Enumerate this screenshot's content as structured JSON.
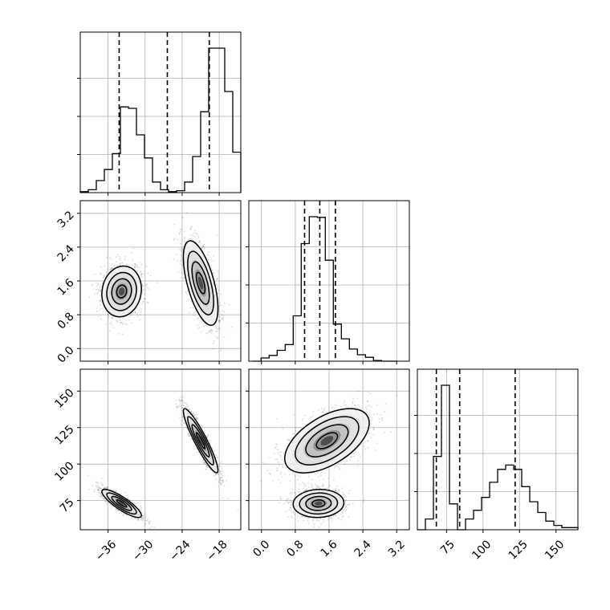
{
  "chart_data": {
    "type": "corner",
    "title": "",
    "xlabel": "",
    "ylabel": "",
    "grid": true,
    "colors": {
      "hist": "#000000",
      "contour": "#000000",
      "grid": "#b0b0b0",
      "points": "#000000"
    },
    "parameters": [
      {
        "range": [
          -40.5,
          -14.5
        ],
        "ticks": [
          -36,
          -30,
          -24,
          -18
        ],
        "tick_labels": [
          "−36",
          "−30",
          "−24",
          "−18"
        ],
        "quantile_lines": [
          -34.2,
          -26.4,
          -19.6
        ]
      },
      {
        "range": [
          -0.3,
          3.5
        ],
        "ticks": [
          0.0,
          0.8,
          1.6,
          2.4,
          3.2
        ],
        "tick_labels": [
          "0.0",
          "0.8",
          "1.6",
          "2.4",
          "3.2"
        ],
        "quantile_lines": [
          1.02,
          1.38,
          1.75
        ]
      },
      {
        "range": [
          55,
          165
        ],
        "ticks": [
          75,
          100,
          125,
          150
        ],
        "tick_labels": [
          "75",
          "100",
          "125",
          "150"
        ],
        "quantile_lines": [
          68,
          84,
          122
        ]
      }
    ],
    "histograms": [
      {
        "param": 0,
        "edges_start": -40.5,
        "bin_width": 1.3,
        "counts": [
          2,
          6,
          25,
          48,
          81,
          178,
          175,
          120,
          72,
          22,
          6,
          2,
          4,
          22,
          75,
          168,
          300,
          300,
          210,
          84
        ]
      },
      {
        "param": 1,
        "edges_start": -0.2,
        "bin_width": 0.19,
        "counts": [
          0,
          5,
          9,
          17,
          26,
          71,
          184,
          226,
          225,
          158,
          58,
          35,
          19,
          10,
          6,
          1,
          0,
          0
        ]
      },
      {
        "param": 2,
        "edges_start": 55,
        "bin_width": 5.5,
        "counts": [
          0,
          5,
          34,
          67,
          12,
          0,
          5,
          9,
          15,
          22,
          28,
          30,
          28,
          20,
          13,
          8,
          4,
          2,
          1,
          1
        ]
      }
    ],
    "modes": [
      {
        "name": "",
        "means": [
          -33.8,
          1.35,
          73
        ],
        "stds": [
          1.6,
          0.3,
          4.8
        ],
        "correlations": [
          [
            1,
            0.1,
            -0.85
          ],
          [
            0.1,
            1,
            0.05
          ],
          [
            -0.85,
            0.05,
            1
          ]
        ]
      },
      {
        "name": "",
        "means": [
          -21.0,
          1.55,
          116
        ],
        "stds": [
          1.4,
          0.5,
          11.0
        ],
        "correlations": [
          [
            1,
            -0.6,
            -0.92
          ],
          [
            -0.6,
            1,
            0.55
          ],
          [
            -0.92,
            0.55,
            1
          ]
        ]
      }
    ],
    "contour_levels": [
      0.5,
      1.0,
      1.5,
      2.0
    ]
  }
}
